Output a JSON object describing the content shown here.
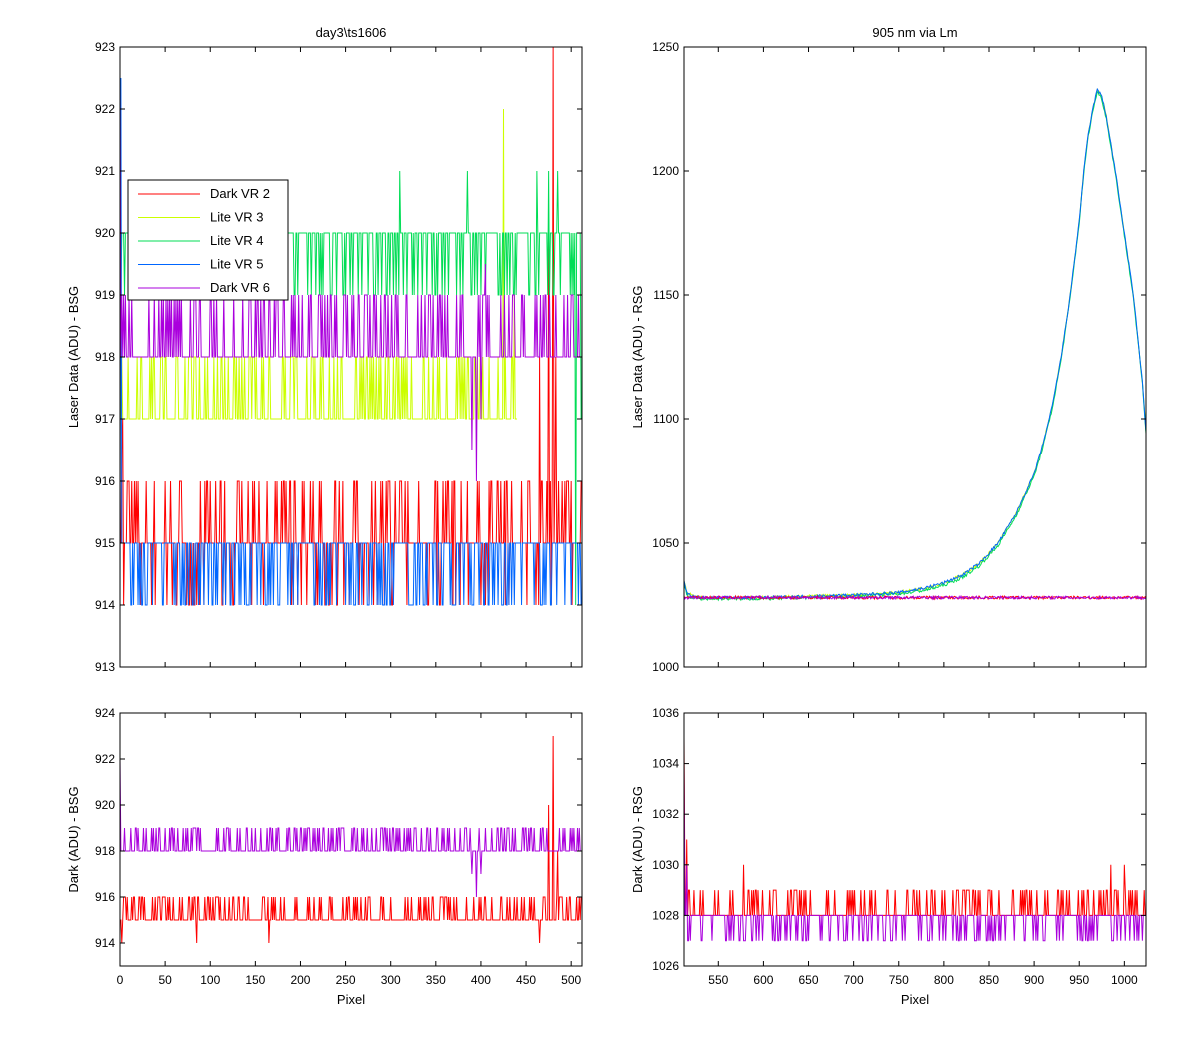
{
  "figure": {
    "background": "#ffffff"
  },
  "chart_data": [
    {
      "id": "top_left",
      "type": "line",
      "title": "day3\\ts1606",
      "xlabel": "",
      "ylabel": "Laser Data (ADU) - BSG",
      "xlim": [
        0,
        512
      ],
      "ylim": [
        913,
        923
      ],
      "xticks": [
        0,
        50,
        100,
        150,
        200,
        250,
        300,
        350,
        400,
        450,
        500
      ],
      "yticks": [
        913,
        914,
        915,
        916,
        917,
        918,
        919,
        920,
        921,
        922,
        923
      ],
      "show_xticklabels": false,
      "grid": false,
      "legend": {
        "position": "upper-left",
        "entries": [
          "Dark VR 2",
          "Lite VR 3",
          "Lite VR 4",
          "Lite VR 5",
          "Dark VR 6"
        ]
      },
      "series": [
        {
          "name": "Dark VR 2",
          "color": "#ff0000",
          "x_range": [
            0,
            511
          ],
          "baseline": 915,
          "levels": [
            914,
            915,
            916
          ],
          "spikes": [
            [
              0,
              915
            ],
            [
              2,
              916.5
            ],
            [
              3,
              917
            ],
            [
              465,
              918
            ],
            [
              475,
              920
            ],
            [
              480,
              923
            ],
            [
              483,
              918
            ],
            [
              490,
              916
            ],
            [
              500,
              916
            ]
          ]
        },
        {
          "name": "Lite VR 3",
          "color": "#ccff00",
          "x_range": [
            0,
            440
          ],
          "baseline": 917,
          "levels": [
            917,
            918
          ],
          "spikes": [
            [
              425,
              922
            ],
            [
              430,
              917
            ],
            [
              437,
              919
            ]
          ]
        },
        {
          "name": "Lite VR 4",
          "color": "#00dd55",
          "x_range": [
            0,
            511
          ],
          "baseline": 920,
          "levels": [
            919,
            920
          ],
          "spikes": [
            [
              310,
              921
            ],
            [
              385,
              921
            ],
            [
              462,
              921
            ],
            [
              475,
              921
            ],
            [
              485,
              921
            ],
            [
              505,
              914
            ],
            [
              511,
              917
            ]
          ]
        },
        {
          "name": "Lite VR 5",
          "color": "#0066ff",
          "x_range": [
            0,
            511
          ],
          "baseline": 915,
          "levels": [
            914,
            915
          ],
          "spikes": [
            [
              1,
              922.5
            ],
            [
              505,
              915
            ]
          ]
        },
        {
          "name": "Dark VR 6",
          "color": "#aa00dd",
          "x_range": [
            0,
            511
          ],
          "baseline": 918,
          "levels": [
            918,
            919
          ],
          "spikes": [
            [
              0,
              922.5
            ],
            [
              390,
              916.5
            ],
            [
              395,
              916
            ],
            [
              400,
              917
            ],
            [
              405,
              919.5
            ]
          ]
        }
      ]
    },
    {
      "id": "top_right",
      "type": "line",
      "title": "905 nm via Lm",
      "xlabel": "",
      "ylabel": "Laser Data (ADU) - RSG",
      "xlim": [
        512,
        1024
      ],
      "ylim": [
        1000,
        1250
      ],
      "xticks": [
        550,
        600,
        650,
        700,
        750,
        800,
        850,
        900,
        950,
        1000
      ],
      "yticks": [
        1000,
        1050,
        1100,
        1150,
        1200,
        1250
      ],
      "show_xticklabels": false,
      "grid": false,
      "series": [
        {
          "name": "Lite VR 3",
          "color": "#ccff00",
          "x": [
            512,
            515,
            520,
            530,
            560,
            600,
            650,
            700,
            750,
            780,
            800,
            820,
            840,
            860,
            880,
            900,
            910,
            920,
            930,
            940,
            950,
            955,
            960,
            965,
            970,
            975,
            980,
            990,
            1000,
            1010,
            1020,
            1024
          ],
          "y": [
            1035,
            1030,
            1029,
            1028,
            1028,
            1028,
            1028.5,
            1029,
            1030,
            1032,
            1034,
            1037,
            1042,
            1050,
            1062,
            1078,
            1090,
            1105,
            1125,
            1150,
            1180,
            1200,
            1215,
            1225,
            1233,
            1230,
            1222,
            1200,
            1175,
            1150,
            1115,
            1095
          ]
        },
        {
          "name": "Lite VR 4",
          "color": "#00dd55",
          "x": [
            512,
            515,
            520,
            530,
            560,
            600,
            650,
            700,
            750,
            780,
            800,
            820,
            840,
            860,
            880,
            900,
            910,
            920,
            930,
            940,
            950,
            955,
            960,
            965,
            970,
            975,
            980,
            990,
            1000,
            1010,
            1020,
            1024
          ],
          "y": [
            1034,
            1029,
            1028,
            1027.5,
            1027.5,
            1027.5,
            1028,
            1028.5,
            1029.5,
            1031,
            1033,
            1036,
            1041,
            1049,
            1061,
            1077,
            1089,
            1104,
            1124,
            1149,
            1179,
            1199,
            1214,
            1224,
            1232,
            1229,
            1221,
            1199,
            1174,
            1149,
            1114,
            1094
          ]
        },
        {
          "name": "Lite VR 5",
          "color": "#0066ff",
          "x": [
            512,
            515,
            520,
            530,
            560,
            600,
            650,
            700,
            750,
            780,
            800,
            820,
            840,
            860,
            880,
            900,
            910,
            920,
            930,
            940,
            950,
            955,
            960,
            965,
            970,
            975,
            980,
            990,
            1000,
            1010,
            1020,
            1024
          ],
          "y": [
            1035,
            1030,
            1029,
            1028,
            1028,
            1028,
            1028.5,
            1029,
            1030,
            1032,
            1034,
            1037,
            1042,
            1050,
            1062,
            1078,
            1090,
            1105,
            1125,
            1150,
            1180,
            1200,
            1215,
            1225,
            1233,
            1230,
            1222,
            1200,
            1175,
            1150,
            1115,
            1095
          ]
        },
        {
          "name": "Dark VR 2",
          "color": "#ff0000",
          "x": [
            512,
            1024
          ],
          "y": [
            1028,
            1028
          ]
        },
        {
          "name": "Dark VR 6",
          "color": "#aa00dd",
          "x": [
            512,
            1024
          ],
          "y": [
            1028,
            1028
          ]
        }
      ]
    },
    {
      "id": "bottom_left",
      "type": "line",
      "title": "",
      "xlabel": "Pixel",
      "ylabel": "Dark (ADU) - BSG",
      "xlim": [
        0,
        512
      ],
      "ylim": [
        913,
        924
      ],
      "xticks": [
        0,
        50,
        100,
        150,
        200,
        250,
        300,
        350,
        400,
        450,
        500
      ],
      "yticks": [
        914,
        916,
        918,
        920,
        922,
        924
      ],
      "show_xticklabels": true,
      "grid": false,
      "series": [
        {
          "name": "Dark VR 2",
          "color": "#ff0000",
          "x_range": [
            0,
            511
          ],
          "baseline": 915,
          "levels": [
            915,
            916
          ],
          "spikes": [
            [
              2,
              914
            ],
            [
              85,
              914
            ],
            [
              165,
              914
            ],
            [
              465,
              914
            ],
            [
              475,
              920
            ],
            [
              480,
              923
            ],
            [
              485,
              918
            ],
            [
              490,
              916
            ],
            [
              500,
              915
            ]
          ]
        },
        {
          "name": "Dark VR 6",
          "color": "#aa00dd",
          "x_range": [
            0,
            511
          ],
          "baseline": 918,
          "levels": [
            918,
            919
          ],
          "spikes": [
            [
              0,
              922
            ],
            [
              390,
              917
            ],
            [
              395,
              916
            ],
            [
              400,
              917
            ],
            [
              405,
              919
            ]
          ]
        }
      ]
    },
    {
      "id": "bottom_right",
      "type": "line",
      "title": "",
      "xlabel": "Pixel",
      "ylabel": "Dark (ADU) - RSG",
      "xlim": [
        512,
        1024
      ],
      "ylim": [
        1026,
        1036
      ],
      "xticks": [
        550,
        600,
        650,
        700,
        750,
        800,
        850,
        900,
        950,
        1000
      ],
      "yticks": [
        1026,
        1028,
        1030,
        1032,
        1034,
        1036
      ],
      "show_xticklabels": true,
      "grid": false,
      "series": [
        {
          "name": "Dark VR 2",
          "color": "#ff0000",
          "x_range": [
            512,
            1024
          ],
          "baseline": 1028,
          "levels": [
            1028,
            1029
          ],
          "spikes": [
            [
              512,
              1035
            ],
            [
              515,
              1031
            ],
            [
              518,
              1029
            ],
            [
              578,
              1030
            ],
            [
              985,
              1030
            ],
            [
              1000,
              1030
            ]
          ]
        },
        {
          "name": "Dark VR 6",
          "color": "#aa00dd",
          "x_range": [
            512,
            1024
          ],
          "baseline": 1028,
          "levels": [
            1027,
            1028
          ],
          "spikes": [
            [
              512,
              1034
            ],
            [
              515,
              1030
            ]
          ]
        }
      ]
    }
  ]
}
